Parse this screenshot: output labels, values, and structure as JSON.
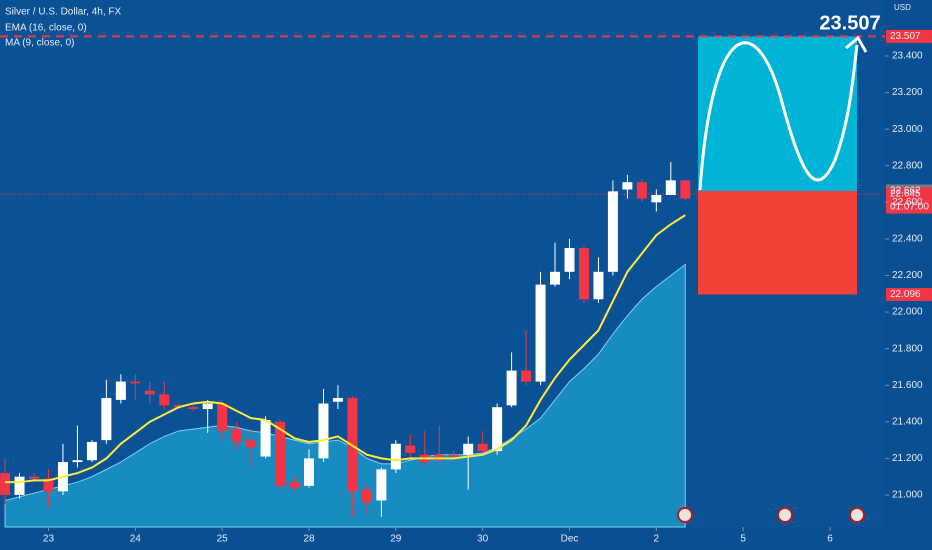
{
  "chart_data": {
    "type": "candlestick",
    "title": "Silver / U.S. Dollar, 4h, FX",
    "y_unit": "USD",
    "xlim": [
      -0.35,
      60.8
    ],
    "xticks": [
      {
        "value": 3,
        "label": "23"
      },
      {
        "value": 9,
        "label": "24"
      },
      {
        "value": 15,
        "label": "25"
      },
      {
        "value": 21,
        "label": "28"
      },
      {
        "value": 27,
        "label": "29"
      },
      {
        "value": 33,
        "label": "30"
      },
      {
        "value": 39,
        "label": "Dec"
      },
      {
        "value": 45,
        "label": "2"
      },
      {
        "value": 51,
        "label": "5"
      },
      {
        "value": 57,
        "label": "6"
      }
    ],
    "ylim": [
      20.825,
      23.706
    ],
    "yticks": [
      {
        "value": 21.0,
        "label": "21.000"
      },
      {
        "value": 21.2,
        "label": "21.200"
      },
      {
        "value": 21.4,
        "label": "21.400"
      },
      {
        "value": 21.6,
        "label": "21.600"
      },
      {
        "value": 21.8,
        "label": "21.800"
      },
      {
        "value": 22.0,
        "label": "22.000"
      },
      {
        "value": 22.2,
        "label": "22.200"
      },
      {
        "value": 22.4,
        "label": "22.400"
      },
      {
        "value": 22.6,
        "label": "22.600"
      },
      {
        "value": 22.8,
        "label": "22.800"
      },
      {
        "value": 23.0,
        "label": "23.000"
      },
      {
        "value": 23.2,
        "label": "23.200"
      },
      {
        "value": 23.4,
        "label": "23.400"
      }
    ],
    "up_color": "#ffffff",
    "down_color": "#f23645",
    "candles": {
      "open": [
        21.12,
        21.0,
        21.1,
        21.09,
        21.02,
        21.18,
        21.19,
        21.3,
        21.52,
        21.62,
        21.57,
        21.55,
        21.49,
        21.48,
        21.47,
        21.5,
        21.36,
        21.3,
        21.21,
        21.4,
        21.07,
        21.05,
        21.2,
        21.51,
        21.53,
        21.03,
        20.97,
        21.14,
        21.27,
        21.22,
        21.22,
        21.22,
        21.22,
        21.28,
        21.24,
        21.49,
        21.68,
        21.62,
        22.15,
        22.22,
        22.35,
        22.07,
        22.22,
        22.67,
        22.71,
        22.6,
        22.64,
        22.72
      ],
      "high": [
        21.2,
        21.12,
        21.12,
        21.14,
        21.28,
        21.38,
        21.3,
        21.63,
        21.66,
        21.66,
        21.62,
        21.62,
        21.5,
        21.49,
        21.52,
        21.51,
        21.4,
        21.36,
        21.43,
        21.41,
        21.1,
        21.25,
        21.58,
        21.6,
        21.54,
        21.06,
        21.15,
        21.3,
        21.33,
        21.35,
        21.38,
        21.24,
        21.32,
        21.35,
        21.5,
        21.78,
        21.9,
        22.22,
        22.38,
        22.4,
        22.36,
        22.3,
        22.72,
        22.75,
        22.73,
        22.67,
        22.82,
        22.72
      ],
      "low": [
        20.95,
        20.98,
        21.08,
        20.93,
        21.0,
        21.15,
        21.18,
        21.28,
        21.5,
        21.52,
        21.5,
        21.47,
        21.47,
        21.46,
        21.34,
        21.3,
        21.25,
        21.15,
        21.2,
        21.03,
        21.02,
        21.04,
        21.18,
        21.47,
        20.88,
        20.9,
        20.88,
        21.12,
        21.2,
        21.16,
        21.16,
        21.18,
        21.03,
        21.23,
        21.22,
        21.48,
        21.6,
        21.6,
        22.14,
        22.18,
        22.05,
        22.05,
        22.2,
        22.62,
        22.6,
        22.55,
        22.64,
        22.61
      ],
      "close": [
        21.0,
        21.1,
        21.09,
        21.02,
        21.18,
        21.19,
        21.29,
        21.53,
        21.62,
        21.61,
        21.55,
        21.49,
        21.48,
        21.47,
        21.5,
        21.35,
        21.29,
        21.26,
        21.41,
        21.05,
        21.04,
        21.2,
        21.5,
        21.53,
        21.02,
        20.96,
        21.14,
        21.28,
        21.23,
        21.18,
        21.19,
        21.21,
        21.28,
        21.24,
        21.48,
        21.68,
        21.62,
        22.15,
        22.22,
        22.35,
        22.07,
        22.22,
        22.66,
        22.71,
        22.62,
        22.64,
        22.72,
        22.62
      ]
    },
    "series": [
      {
        "name": "EMA (16, close, 0)",
        "color": "#ffeb3b",
        "style": "line",
        "values": [
          21.07,
          21.07,
          21.08,
          21.08,
          21.1,
          21.12,
          21.15,
          21.2,
          21.28,
          21.34,
          21.4,
          21.44,
          21.48,
          21.5,
          21.51,
          21.5,
          21.46,
          21.42,
          21.41,
          21.36,
          21.31,
          21.29,
          21.3,
          21.32,
          21.27,
          21.22,
          21.2,
          21.19,
          21.2,
          21.2,
          21.2,
          21.2,
          21.21,
          21.22,
          21.25,
          21.3,
          21.38,
          21.52,
          21.64,
          21.74,
          21.82,
          21.9,
          22.06,
          22.22,
          22.32,
          22.42,
          22.48,
          22.53
        ]
      },
      {
        "name": "MA (9, close, 0)",
        "color": "#1e9fd0",
        "style": "area",
        "values": [
          20.97,
          20.99,
          21.01,
          21.03,
          21.05,
          21.07,
          21.1,
          21.14,
          21.18,
          21.23,
          21.28,
          21.32,
          21.35,
          21.36,
          21.37,
          21.38,
          21.37,
          21.35,
          21.34,
          21.32,
          21.3,
          21.28,
          21.29,
          21.3,
          21.26,
          21.2,
          21.17,
          21.17,
          21.19,
          21.21,
          21.22,
          21.22,
          21.22,
          21.23,
          21.26,
          21.31,
          21.36,
          21.42,
          21.52,
          21.62,
          21.69,
          21.77,
          21.88,
          21.98,
          22.07,
          22.14,
          22.2,
          22.26
        ]
      }
    ],
    "position": {
      "target": 23.507,
      "entry": 22.662,
      "stop": 22.096,
      "target_color": "#00b4d8",
      "stop_color": "#f44336"
    },
    "annotation": {
      "value": 23.507,
      "label": "23.507"
    },
    "price_labels": [
      {
        "value": 23.507,
        "label": "23.507",
        "color": "#f23645"
      },
      {
        "value": 22.662,
        "label": "22.662",
        "color": "#787b86"
      },
      {
        "value": 22.645,
        "label": "22.645",
        "color": "#f23645"
      },
      {
        "value": 22.096,
        "label": "22.096",
        "color": "#f23645"
      }
    ],
    "countdown": "01:07:00"
  }
}
